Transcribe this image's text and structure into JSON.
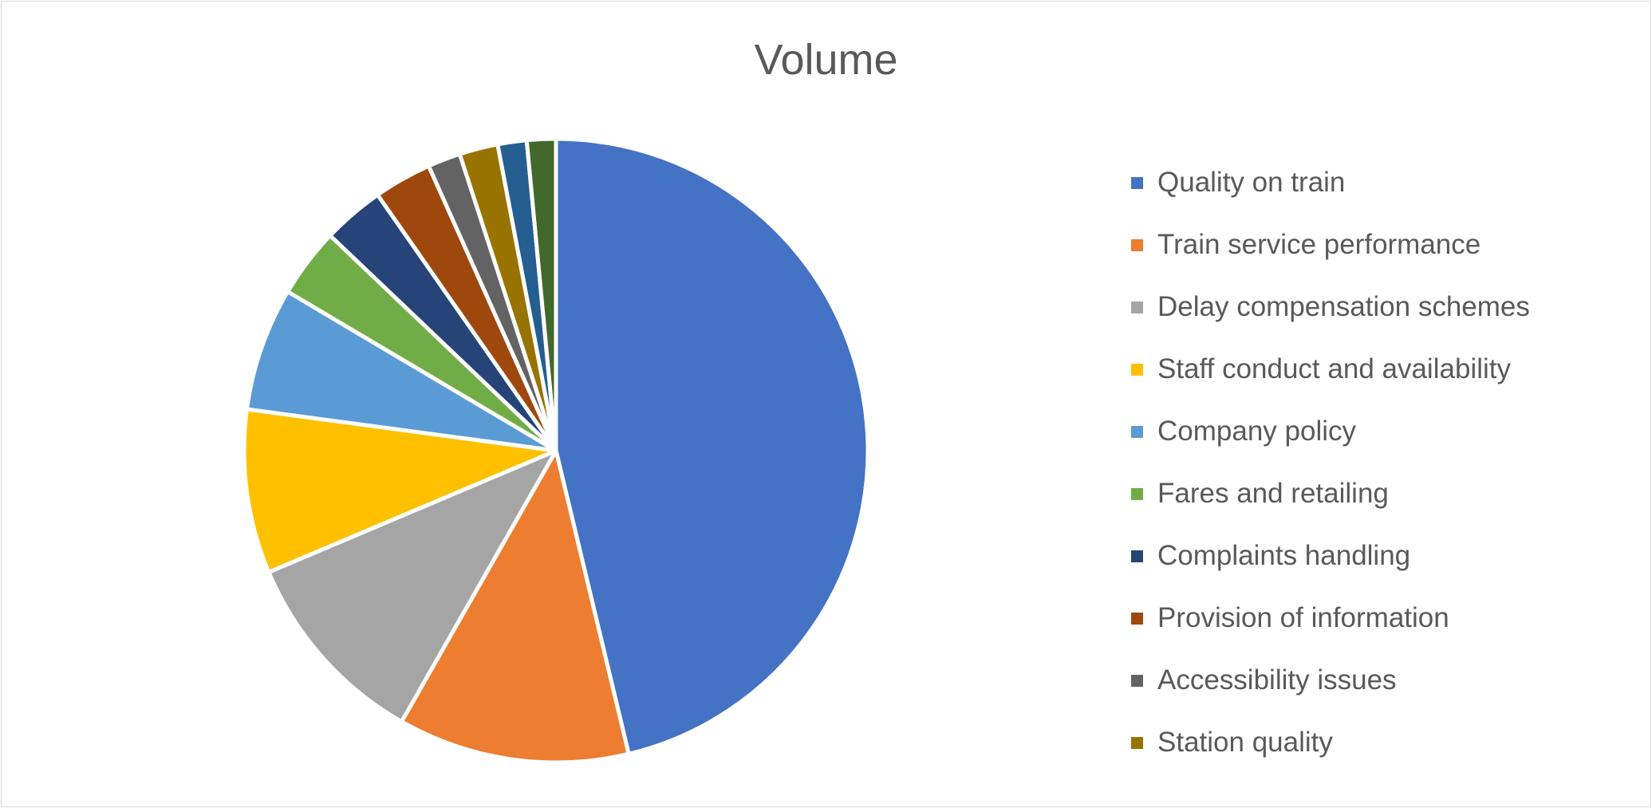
{
  "chart_data": {
    "type": "pie",
    "title": "Volume",
    "legend_position": "right",
    "slices": [
      {
        "name": "Quality on train",
        "value": 46.3,
        "color": "#4472C4"
      },
      {
        "name": "Train service performance",
        "value": 12.0,
        "color": "#ED7D31"
      },
      {
        "name": "Delay compensation schemes",
        "value": 10.4,
        "color": "#A5A5A5"
      },
      {
        "name": "Staff conduct and availability",
        "value": 8.5,
        "color": "#FFC000"
      },
      {
        "name": "Company policy",
        "value": 6.4,
        "color": "#5B9BD5"
      },
      {
        "name": "Fares and retailing",
        "value": 3.6,
        "color": "#70AD47"
      },
      {
        "name": "Complaints handling",
        "value": 3.2,
        "color": "#264478"
      },
      {
        "name": "Provision of information",
        "value": 3.0,
        "color": "#9E480E"
      },
      {
        "name": "Accessibility issues",
        "value": 1.7,
        "color": "#636363"
      },
      {
        "name": "Station quality",
        "value": 2.0,
        "color": "#997300"
      },
      {
        "name": "",
        "value": 1.5,
        "color": "#255E91"
      },
      {
        "name": "",
        "value": 1.5,
        "color": "#43682B"
      }
    ]
  }
}
